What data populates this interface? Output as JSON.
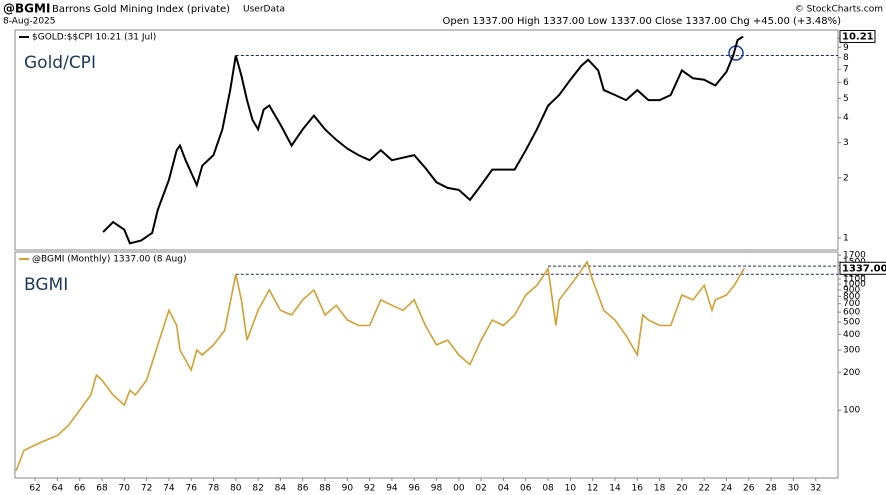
{
  "header": {
    "symbol": "@BGMI",
    "name": "Barrons Gold Mining Index (private)",
    "source": "UserData",
    "date": "8-Aug-2025",
    "quote": "Open 1337.00  High 1337.00  Low 1337.00  Close 1337.00  Chg +45.00 (+3.48%)",
    "copyright": "© StockCharts.com"
  },
  "chart_data": [
    {
      "type": "line",
      "log": true,
      "panel_label": "Gold/CPI",
      "last_label": "10.21",
      "xlim": [
        1960.2,
        2034
      ],
      "ylim": [
        0.87,
        11
      ],
      "yticks": [
        1,
        2,
        3,
        4,
        5,
        6,
        7,
        8,
        9,
        10
      ],
      "reference_lines": [
        {
          "value": 8.2,
          "from": 1980
        }
      ],
      "x": [
        1968.1,
        1969,
        1970,
        1970.5,
        1971.5,
        1972.5,
        1973,
        1973.5,
        1974,
        1974.7,
        1975,
        1975.5,
        1976.5,
        1977,
        1978,
        1978.8,
        1979.5,
        1980,
        1980.5,
        1981,
        1981.5,
        1982,
        1982.5,
        1983,
        1984,
        1985,
        1986,
        1987,
        1988,
        1989,
        1990,
        1991,
        1992,
        1993,
        1994,
        1996,
        1997,
        1998,
        1999,
        2000,
        2001,
        2002,
        2003,
        2004,
        2005,
        2006,
        2007,
        2008,
        2009,
        2010,
        2011,
        2011.6,
        2012.5,
        2013,
        2014,
        2015,
        2016,
        2017,
        2018,
        2019,
        2020,
        2021,
        2022,
        2023,
        2024,
        2024.6,
        2025,
        2025.5
      ],
      "series": [
        {
          "name": "$GOLD:$$CPI 10.21 (31 Jul)",
          "color": "#000000",
          "values": [
            1.07,
            1.2,
            1.1,
            0.94,
            0.97,
            1.06,
            1.38,
            1.64,
            1.95,
            2.75,
            2.9,
            2.45,
            1.84,
            2.3,
            2.6,
            3.5,
            5.5,
            8.2,
            6.5,
            4.9,
            3.9,
            3.5,
            4.4,
            4.6,
            3.7,
            2.9,
            3.5,
            4.1,
            3.5,
            3.1,
            2.8,
            2.6,
            2.45,
            2.75,
            2.45,
            2.6,
            2.24,
            1.9,
            1.78,
            1.74,
            1.55,
            1.84,
            2.2,
            2.2,
            2.2,
            2.75,
            3.5,
            4.6,
            5.2,
            6.2,
            7.3,
            7.8,
            6.9,
            5.5,
            5.2,
            4.9,
            5.5,
            4.9,
            4.9,
            5.2,
            6.9,
            6.3,
            6.2,
            5.8,
            6.8,
            8.2,
            9.8,
            10.21
          ]
        }
      ]
    },
    {
      "type": "line",
      "log": true,
      "panel_label": "BGMI",
      "last_label": "1337.00",
      "xlim": [
        1960.2,
        2034
      ],
      "ylim": [
        29,
        1800
      ],
      "yticks": [
        100,
        200,
        300,
        400,
        500,
        600,
        700,
        800,
        900,
        1000,
        1100,
        1200,
        1300,
        1400,
        1500,
        1700
      ],
      "xticks": [
        {
          "value": 1962,
          "label": "62"
        },
        {
          "value": 1964,
          "label": "64"
        },
        {
          "value": 1966,
          "label": "66"
        },
        {
          "value": 1968,
          "label": "68"
        },
        {
          "value": 1970,
          "label": "70"
        },
        {
          "value": 1972,
          "label": "72"
        },
        {
          "value": 1974,
          "label": "74"
        },
        {
          "value": 1976,
          "label": "76"
        },
        {
          "value": 1978,
          "label": "78"
        },
        {
          "value": 1980,
          "label": "80"
        },
        {
          "value": 1982,
          "label": "82"
        },
        {
          "value": 1984,
          "label": "84"
        },
        {
          "value": 1986,
          "label": "86"
        },
        {
          "value": 1988,
          "label": "88"
        },
        {
          "value": 1990,
          "label": "90"
        },
        {
          "value": 1992,
          "label": "92"
        },
        {
          "value": 1994,
          "label": "94"
        },
        {
          "value": 1996,
          "label": "96"
        },
        {
          "value": 1998,
          "label": "98"
        },
        {
          "value": 2000,
          "label": "00"
        },
        {
          "value": 2002,
          "label": "02"
        },
        {
          "value": 2004,
          "label": "04"
        },
        {
          "value": 2006,
          "label": "06"
        },
        {
          "value": 2008,
          "label": "08"
        },
        {
          "value": 2010,
          "label": "10"
        },
        {
          "value": 2012,
          "label": "12"
        },
        {
          "value": 2014,
          "label": "14"
        },
        {
          "value": 2016,
          "label": "16"
        },
        {
          "value": 2018,
          "label": "18"
        },
        {
          "value": 2020,
          "label": "20"
        },
        {
          "value": 2022,
          "label": "22"
        },
        {
          "value": 2024,
          "label": "24"
        },
        {
          "value": 2026,
          "label": "26"
        },
        {
          "value": 2028,
          "label": "28"
        },
        {
          "value": 2030,
          "label": "30"
        },
        {
          "value": 2032,
          "label": "32"
        }
      ],
      "reference_lines": [
        {
          "value": 1390,
          "from": 2008
        },
        {
          "value": 1200,
          "from": 1980
        }
      ],
      "x": [
        1960.3,
        1961,
        1962,
        1963,
        1964,
        1965,
        1966,
        1967,
        1967.5,
        1968,
        1969,
        1970,
        1970.5,
        1971,
        1972,
        1973,
        1974,
        1974.7,
        1975,
        1976,
        1976.5,
        1977,
        1978,
        1979,
        1980,
        1980.5,
        1981,
        1982,
        1983,
        1984,
        1985,
        1986,
        1987,
        1988,
        1989,
        1990,
        1991,
        1992,
        1993,
        1994,
        1995,
        1996,
        1997,
        1998,
        1999,
        2000,
        2001,
        2002,
        2003,
        2004,
        2005,
        2006,
        2007,
        2008,
        2008.7,
        2009,
        2010,
        2011,
        2011.5,
        2012,
        2013,
        2014,
        2015,
        2016,
        2016.5,
        2017,
        2018,
        2019,
        2020,
        2021,
        2022,
        2022.7,
        2023,
        2024,
        2024.7,
        2025.6
      ],
      "series": [
        {
          "name": "@BGMI (Monthly) 1337.00 (8 Aug)",
          "color": "#d4a030",
          "values": [
            33,
            48,
            53,
            58,
            63,
            76,
            100,
            132,
            190,
            173,
            132,
            110,
            144,
            132,
            173,
            328,
            620,
            470,
            300,
            208,
            300,
            275,
            330,
            430,
            1200,
            750,
            360,
            620,
            900,
            620,
            570,
            750,
            900,
            570,
            680,
            520,
            470,
            470,
            750,
            680,
            620,
            750,
            470,
            330,
            360,
            275,
            230,
            360,
            520,
            470,
            570,
            820,
            980,
            1330,
            470,
            750,
            980,
            1290,
            1500,
            1075,
            620,
            520,
            390,
            275,
            570,
            520,
            470,
            470,
            820,
            750,
            980,
            620,
            750,
            820,
            980,
            1337
          ]
        }
      ]
    }
  ]
}
